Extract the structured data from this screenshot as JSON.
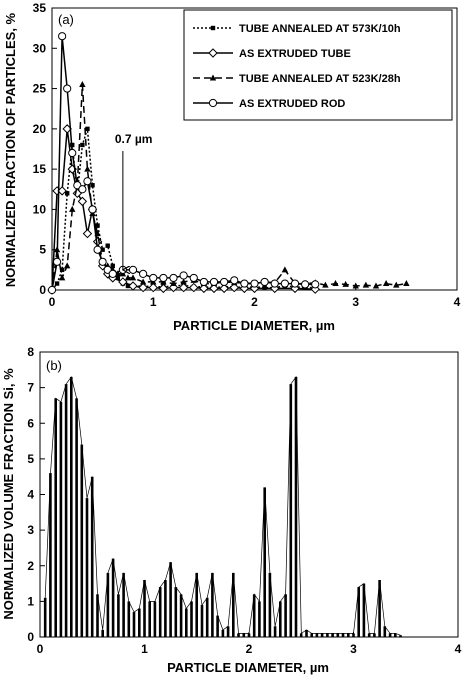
{
  "chart_data": [
    {
      "type": "line",
      "panel_label": "(a)",
      "xlabel": "PARTICLE DIAMETER, µm",
      "ylabel": "NORMALIZED FRACTION OF PARTICLES, %",
      "xlim": [
        0,
        4
      ],
      "ylim": [
        0,
        35
      ],
      "xticks": [
        "0",
        "1",
        "2",
        "3",
        "4"
      ],
      "yticks": [
        "0",
        "5",
        "10",
        "15",
        "20",
        "25",
        "30",
        "35"
      ],
      "grid": false,
      "legend_position": "top-right",
      "annotation": {
        "text": "0.7 µm",
        "x": 0.7,
        "arrow_from_y": 17.5,
        "arrow_to_y": 2.5
      },
      "series": [
        {
          "name": "TUBE ANNEALED AT 573K/10h",
          "color": "#000000",
          "dash": "2,2",
          "marker": "square",
          "x": [
            0,
            0.05,
            0.1,
            0.15,
            0.2,
            0.25,
            0.3,
            0.35,
            0.4,
            0.45,
            0.5,
            0.55,
            0.6,
            0.65,
            0.7,
            0.75,
            0.8,
            0.9,
            1.0,
            1.1,
            1.2,
            1.3,
            1.4,
            1.5,
            1.6,
            1.7,
            1.8,
            1.9,
            2.0,
            2.1,
            2.2,
            2.3,
            2.4,
            2.5,
            2.6
          ],
          "y": [
            0,
            0.8,
            2.5,
            12.0,
            18.0,
            12.0,
            18.0,
            20.0,
            13.0,
            8.0,
            5.0,
            5.5,
            3.0,
            1.5,
            0.8,
            0.5,
            0.5,
            0.5,
            0.4,
            0.4,
            0.5,
            0.6,
            0.4,
            0.4,
            0.3,
            0.4,
            0.4,
            0.3,
            0.4,
            0.3,
            0.3,
            0.5,
            0.4,
            0.3,
            0.3
          ]
        },
        {
          "name": "AS EXTRUDED TUBE",
          "color": "#000000",
          "dash": "",
          "marker": "diamond",
          "x": [
            0,
            0.05,
            0.1,
            0.15,
            0.2,
            0.25,
            0.3,
            0.35,
            0.4,
            0.45,
            0.5,
            0.55,
            0.6,
            0.7,
            0.8,
            0.9,
            1.0,
            1.1,
            1.2,
            1.3,
            1.4,
            1.5,
            1.6,
            1.7,
            1.8,
            1.9,
            2.0,
            2.2,
            2.4,
            2.6
          ],
          "y": [
            0,
            12.3,
            12.3,
            20.0,
            15.0,
            12.0,
            11.0,
            7.0,
            10.0,
            6.0,
            3.0,
            2.0,
            1.5,
            1.0,
            0.5,
            0.3,
            0.3,
            0.2,
            0.3,
            0.3,
            0.3,
            0.2,
            0.2,
            0.2,
            0.3,
            0.2,
            0.2,
            0.2,
            0.2,
            0.1
          ]
        },
        {
          "name": "TUBE ANNEALED AT 523K/28h",
          "color": "#000000",
          "dash": "7,4",
          "marker": "triangle",
          "x": [
            0,
            0.05,
            0.1,
            0.15,
            0.2,
            0.25,
            0.3,
            0.35,
            0.4,
            0.45,
            0.5,
            0.55,
            0.6,
            0.65,
            0.7,
            0.75,
            0.8,
            0.9,
            1.0,
            1.1,
            1.2,
            1.3,
            1.4,
            1.5,
            1.6,
            1.7,
            1.8,
            1.9,
            2.0,
            2.1,
            2.2,
            2.3,
            2.4,
            2.5,
            2.6,
            2.7,
            2.8,
            2.9,
            3.0,
            3.1,
            3.2,
            3.3,
            3.4,
            3.5
          ],
          "y": [
            0,
            5.0,
            1.5,
            3.0,
            10.0,
            13.0,
            25.5,
            15.0,
            9.5,
            7.0,
            3.5,
            3.0,
            2.5,
            2.0,
            2.0,
            1.5,
            1.5,
            1.0,
            1.0,
            1.0,
            0.8,
            1.0,
            1.2,
            0.8,
            0.8,
            1.0,
            0.9,
            0.9,
            0.8,
            1.0,
            0.9,
            2.5,
            0.8,
            0.8,
            0.9,
            0.6,
            0.8,
            0.7,
            0.5,
            0.6,
            0.5,
            0.8,
            0.6,
            0.8
          ]
        },
        {
          "name": "AS EXTRUDED ROD",
          "color": "#000000",
          "dash": "",
          "marker": "circle",
          "x": [
            0,
            0.05,
            0.1,
            0.15,
            0.2,
            0.25,
            0.3,
            0.35,
            0.4,
            0.45,
            0.5,
            0.55,
            0.6,
            0.7,
            0.8,
            0.9,
            1.0,
            1.1,
            1.2,
            1.3,
            1.4,
            1.5,
            1.6,
            1.7,
            1.8,
            1.9,
            2.0,
            2.1,
            2.2,
            2.3,
            2.4,
            2.5,
            2.6
          ],
          "y": [
            0,
            3.5,
            31.5,
            25.0,
            17.0,
            13.0,
            12.5,
            13.5,
            10.0,
            5.0,
            3.5,
            2.5,
            2.0,
            2.5,
            2.5,
            2.0,
            1.5,
            1.5,
            1.5,
            1.8,
            1.5,
            1.0,
            1.0,
            1.0,
            1.2,
            0.8,
            0.8,
            1.0,
            0.8,
            0.8,
            0.8,
            0.7,
            0.7
          ]
        }
      ]
    },
    {
      "type": "bar",
      "panel_label": "(b)",
      "xlabel": "PARTICLE DIAMETER, µm",
      "ylabel": "NORMALIZED VOLUME FRACTION Si, %",
      "xlim": [
        0,
        4
      ],
      "ylim": [
        0,
        8
      ],
      "xticks": [
        "0",
        "1",
        "2",
        "3",
        "4"
      ],
      "yticks": [
        "0",
        "1",
        "2",
        "3",
        "4",
        "5",
        "6",
        "7",
        "8"
      ],
      "grid": false,
      "bar_width": 0.025,
      "x": [
        0.05,
        0.1,
        0.15,
        0.2,
        0.25,
        0.3,
        0.35,
        0.4,
        0.45,
        0.5,
        0.55,
        0.6,
        0.65,
        0.7,
        0.75,
        0.8,
        0.85,
        0.9,
        0.95,
        1.0,
        1.05,
        1.1,
        1.15,
        1.2,
        1.25,
        1.3,
        1.35,
        1.4,
        1.45,
        1.5,
        1.55,
        1.6,
        1.65,
        1.7,
        1.75,
        1.8,
        1.85,
        1.9,
        1.95,
        2.0,
        2.05,
        2.1,
        2.15,
        2.2,
        2.25,
        2.3,
        2.35,
        2.4,
        2.45,
        2.5,
        2.55,
        2.6,
        2.65,
        2.7,
        2.75,
        2.8,
        2.85,
        2.9,
        2.95,
        3.0,
        3.05,
        3.1,
        3.15,
        3.2,
        3.25,
        3.3,
        3.35,
        3.4,
        3.45
      ],
      "values": [
        1.1,
        4.6,
        6.7,
        6.6,
        7.1,
        7.3,
        6.7,
        5.4,
        3.9,
        4.5,
        1.2,
        0.2,
        1.8,
        2.2,
        1.2,
        1.8,
        1.0,
        0.7,
        0.8,
        1.6,
        1.0,
        1.0,
        1.4,
        1.6,
        2.1,
        1.4,
        1.2,
        0.8,
        1.0,
        1.8,
        0.9,
        1.1,
        1.8,
        0.6,
        0.2,
        0.3,
        1.8,
        0.1,
        0.1,
        0.1,
        1.2,
        1.0,
        4.2,
        1.8,
        0.3,
        1.0,
        1.2,
        7.1,
        7.3,
        0.1,
        0.2,
        0.1,
        0.1,
        0.1,
        0.1,
        0.1,
        0.1,
        0.1,
        0.1,
        0.1,
        1.4,
        1.5,
        0.1,
        0.1,
        1.6,
        0.3,
        0.1,
        0.1,
        0.05
      ]
    }
  ]
}
